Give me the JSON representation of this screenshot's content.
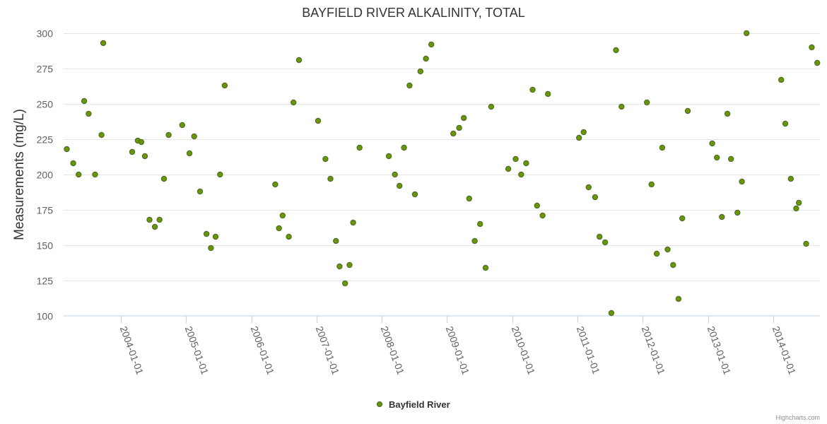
{
  "chart_data": {
    "type": "scatter",
    "title": "BAYFIELD RIVER ALKALINITY, TOTAL",
    "ylabel": "Measurements (mg/L)",
    "xlabel": "",
    "ylim": [
      100,
      300
    ],
    "xlim": [
      "2003-02-15",
      "2014-09-20"
    ],
    "yticks": [
      100,
      125,
      150,
      175,
      200,
      225,
      250,
      275,
      300
    ],
    "xticks": [
      "2004-01-01",
      "2005-01-01",
      "2006-01-01",
      "2007-01-01",
      "2008-01-01",
      "2009-01-01",
      "2010-01-01",
      "2011-01-01",
      "2012-01-01",
      "2013-01-01",
      "2014-01-01"
    ],
    "grid": true,
    "legend_position": "bottom-center",
    "series": [
      {
        "name": "Bayfield River",
        "color": "#669900",
        "points": [
          [
            "2003-03-05",
            218
          ],
          [
            "2003-04-10",
            208
          ],
          [
            "2003-05-10",
            200
          ],
          [
            "2003-06-10",
            252
          ],
          [
            "2003-07-05",
            243
          ],
          [
            "2003-08-10",
            200
          ],
          [
            "2003-09-15",
            228
          ],
          [
            "2003-09-25",
            293
          ],
          [
            "2004-03-05",
            216
          ],
          [
            "2004-04-05",
            224
          ],
          [
            "2004-04-25",
            223
          ],
          [
            "2004-05-15",
            213
          ],
          [
            "2004-06-10",
            168
          ],
          [
            "2004-07-10",
            163
          ],
          [
            "2004-08-05",
            168
          ],
          [
            "2004-08-30",
            197
          ],
          [
            "2004-09-25",
            228
          ],
          [
            "2004-12-10",
            235
          ],
          [
            "2005-01-20",
            215
          ],
          [
            "2005-02-15",
            227
          ],
          [
            "2005-03-20",
            188
          ],
          [
            "2005-04-25",
            158
          ],
          [
            "2005-05-20",
            148
          ],
          [
            "2005-06-15",
            156
          ],
          [
            "2005-07-10",
            200
          ],
          [
            "2005-08-05",
            263
          ],
          [
            "2006-05-15",
            193
          ],
          [
            "2006-06-05",
            162
          ],
          [
            "2006-06-25",
            171
          ],
          [
            "2006-07-30",
            156
          ],
          [
            "2006-08-25",
            251
          ],
          [
            "2006-09-25",
            281
          ],
          [
            "2007-01-10",
            238
          ],
          [
            "2007-02-20",
            211
          ],
          [
            "2007-03-20",
            197
          ],
          [
            "2007-04-20",
            153
          ],
          [
            "2007-05-10",
            135
          ],
          [
            "2007-06-10",
            123
          ],
          [
            "2007-07-05",
            136
          ],
          [
            "2007-07-25",
            166
          ],
          [
            "2007-08-30",
            219
          ],
          [
            "2008-02-10",
            213
          ],
          [
            "2008-03-15",
            200
          ],
          [
            "2008-04-10",
            192
          ],
          [
            "2008-05-05",
            219
          ],
          [
            "2008-06-05",
            263
          ],
          [
            "2008-07-05",
            186
          ],
          [
            "2008-08-05",
            273
          ],
          [
            "2008-09-05",
            282
          ],
          [
            "2008-10-05",
            292
          ],
          [
            "2009-02-05",
            229
          ],
          [
            "2009-03-10",
            233
          ],
          [
            "2009-04-05",
            240
          ],
          [
            "2009-05-05",
            183
          ],
          [
            "2009-06-05",
            153
          ],
          [
            "2009-07-05",
            165
          ],
          [
            "2009-08-05",
            134
          ],
          [
            "2009-09-05",
            248
          ],
          [
            "2009-12-10",
            204
          ],
          [
            "2010-01-20",
            211
          ],
          [
            "2010-02-20",
            200
          ],
          [
            "2010-03-20",
            208
          ],
          [
            "2010-04-25",
            260
          ],
          [
            "2010-05-20",
            178
          ],
          [
            "2010-06-20",
            171
          ],
          [
            "2010-07-20",
            257
          ],
          [
            "2011-01-10",
            226
          ],
          [
            "2011-02-05",
            230
          ],
          [
            "2011-03-05",
            191
          ],
          [
            "2011-04-10",
            184
          ],
          [
            "2011-05-05",
            156
          ],
          [
            "2011-06-05",
            152
          ],
          [
            "2011-07-10",
            102
          ],
          [
            "2011-08-05",
            288
          ],
          [
            "2011-09-05",
            248
          ],
          [
            "2012-01-25",
            251
          ],
          [
            "2012-02-20",
            193
          ],
          [
            "2012-03-20",
            144
          ],
          [
            "2012-04-20",
            219
          ],
          [
            "2012-05-20",
            147
          ],
          [
            "2012-06-20",
            136
          ],
          [
            "2012-07-20",
            112
          ],
          [
            "2012-08-10",
            169
          ],
          [
            "2012-09-10",
            245
          ],
          [
            "2013-01-25",
            222
          ],
          [
            "2013-02-20",
            212
          ],
          [
            "2013-03-20",
            170
          ],
          [
            "2013-04-20",
            243
          ],
          [
            "2013-05-10",
            211
          ],
          [
            "2013-06-15",
            173
          ],
          [
            "2013-07-10",
            195
          ],
          [
            "2013-08-05",
            300
          ],
          [
            "2014-02-15",
            267
          ],
          [
            "2014-03-10",
            236
          ],
          [
            "2014-04-10",
            197
          ],
          [
            "2014-05-10",
            176
          ],
          [
            "2014-05-25",
            180
          ],
          [
            "2014-07-05",
            151
          ],
          [
            "2014-08-05",
            290
          ],
          [
            "2014-09-05",
            279
          ]
        ]
      }
    ]
  },
  "legend": {
    "label": "Bayfield River"
  },
  "credits": "Highcharts.com"
}
